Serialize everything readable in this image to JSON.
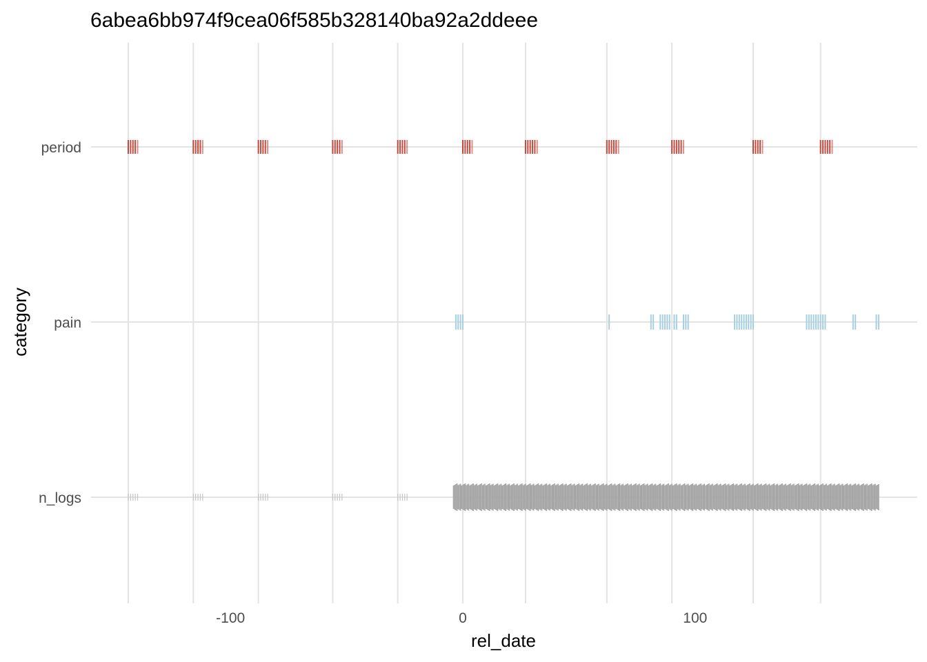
{
  "chart_data": {
    "type": "scatter",
    "title": "6abea6bb974f9cea06f585b328140ba92a2ddeee",
    "xlabel": "rel_date",
    "ylabel": "category",
    "xlim": [
      -160,
      186
    ],
    "x_ticks": [
      -100,
      0,
      100
    ],
    "categories": [
      "period",
      "pain",
      "n_logs"
    ],
    "grid": true,
    "colors": {
      "period": "#c0392b",
      "pain": "#a6cfe0",
      "n_logs": "#a6a6a6",
      "grid": "#e3e3e3"
    },
    "series": [
      {
        "name": "period",
        "x": [
          -144,
          -143,
          -142,
          -141,
          -140,
          -116,
          -115,
          -114,
          -113,
          -112,
          -88,
          -87,
          -86,
          -85,
          -84,
          -56,
          -55,
          -54,
          -53,
          -52,
          -28,
          -27,
          -26,
          -25,
          -24,
          0,
          1,
          2,
          3,
          4,
          27,
          28,
          29,
          30,
          31,
          32,
          62,
          63,
          64,
          65,
          66,
          67,
          90,
          91,
          92,
          93,
          94,
          95,
          125,
          126,
          127,
          128,
          129,
          154,
          155,
          156,
          157,
          158,
          159
        ]
      },
      {
        "name": "pain",
        "x": [
          -3,
          -2,
          -1,
          0,
          63,
          81,
          82,
          85,
          86,
          87,
          88,
          89,
          91,
          92,
          95,
          96,
          97,
          117,
          118,
          119,
          120,
          121,
          122,
          123,
          124,
          125,
          148,
          149,
          150,
          151,
          152,
          153,
          154,
          155,
          156,
          168,
          169,
          178,
          179
        ]
      },
      {
        "name": "n_logs",
        "ticks_small_x": [
          -144,
          -143,
          -142,
          -141,
          -140,
          -116,
          -115,
          -114,
          -113,
          -112,
          -88,
          -87,
          -86,
          -85,
          -84,
          -56,
          -55,
          -54,
          -53,
          -52,
          -28,
          -27,
          -26,
          -25,
          -24
        ],
        "dense_range": [
          -4,
          179
        ]
      }
    ]
  }
}
